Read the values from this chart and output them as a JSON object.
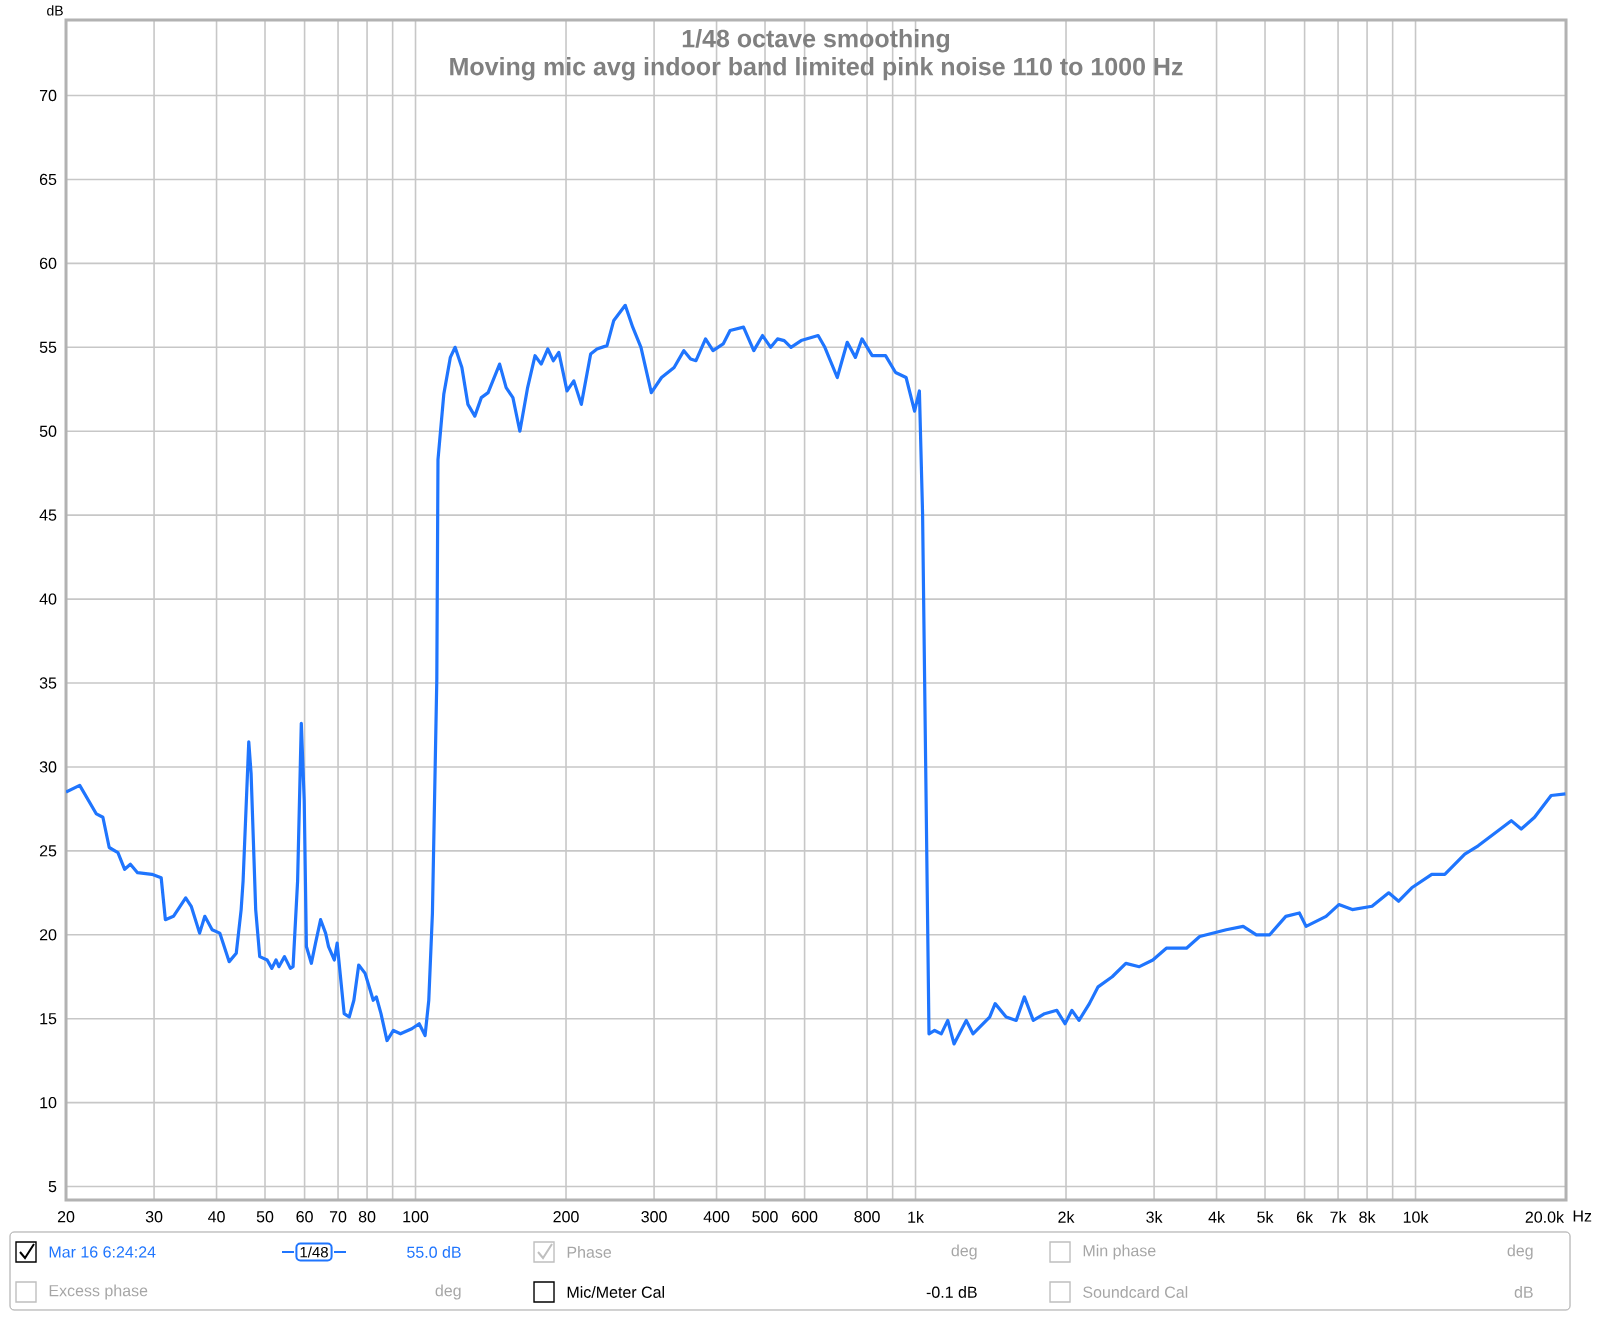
{
  "chart_data": {
    "type": "line",
    "title": "1/48 octave smoothing",
    "subtitle": "Moving mic avg indoor band limited pink noise 110 to 1000 Hz",
    "xlabel": "Hz",
    "ylabel": "dB",
    "log": "x",
    "grid": true,
    "color": "#1f75fe",
    "xlim": [
      20,
      20000
    ],
    "ylim": [
      4.2,
      74.5
    ],
    "xticks": [
      20,
      30,
      40,
      50,
      60,
      70,
      80,
      {
        "value": 90,
        "label": null
      },
      100,
      200,
      300,
      400,
      500,
      600,
      800,
      {
        "value": 900,
        "label": null
      },
      {
        "value": 1000,
        "label": "1k"
      },
      {
        "value": 2000,
        "label": "2k"
      },
      {
        "value": 3000,
        "label": "3k"
      },
      {
        "value": 4000,
        "label": "4k"
      },
      {
        "value": 5000,
        "label": "5k"
      },
      {
        "value": 6000,
        "label": "6k"
      },
      {
        "value": 7000,
        "label": "7k"
      },
      {
        "value": 8000,
        "label": "8k"
      },
      {
        "value": 9000,
        "label": null
      },
      {
        "value": 10000,
        "label": "10k"
      },
      {
        "value": 20000,
        "label": "20.0k"
      }
    ],
    "yticks": [
      5,
      10,
      15,
      20,
      25,
      30,
      35,
      40,
      45,
      50,
      55,
      60,
      65,
      70
    ],
    "x": [
      20,
      21.3,
      23.0,
      23.7,
      24.4,
      25.4,
      26.2,
      26.9,
      27.8,
      29.7,
      31.0,
      31.6,
      32.8,
      34.7,
      35.6,
      37.0,
      37.9,
      39.2,
      40.6,
      42.4,
      43.8,
      44.8,
      45.2,
      46.4,
      46.9,
      47.9,
      48.8,
      50.5,
      51.6,
      52.6,
      53.3,
      54.7,
      56.2,
      56.9,
      58.1,
      59.1,
      59.9,
      60.5,
      61.9,
      63.1,
      64.6,
      66.1,
      67.0,
      68.8,
      69.7,
      72.0,
      73.7,
      75.3,
      77.0,
      79.3,
      82.3,
      83.5,
      85.3,
      87.7,
      90.3,
      93.3,
      98.3,
      101.7,
      104.5,
      106.3,
      108.1,
      110.3,
      110.9,
      113.9,
      117.4,
      120.0,
      123.8,
      127.3,
      131.4,
      135.4,
      139.7,
      147.3,
      151.8,
      156.6,
      161.7,
      167.6,
      173.4,
      178.4,
      183.9,
      188.7,
      193.5,
      200.9,
      207.3,
      214.6,
      224.0,
      230.6,
      241.5,
      249.2,
      262.7,
      271.9,
      282.4,
      296.2,
      310.5,
      329.0,
      344.1,
      355.0,
      363.9,
      380.2,
      393.6,
      412.4,
      425.7,
      452.9,
      474.8,
      494.4,
      513.2,
      529.6,
      546.2,
      563.6,
      590.5,
      638.6,
      658.7,
      697.4,
      730.3,
      758.2,
      781.7,
      819.0,
      871.0,
      912.2,
      957.5,
      995.6,
      1018,
      1033,
      1064,
      1092,
      1126,
      1160,
      1194,
      1263,
      1303,
      1407,
      1443,
      1518,
      1590,
      1651,
      1720,
      1812,
      1917,
      1991,
      2055,
      2123,
      2227,
      2318,
      2474,
      2634,
      2803,
      2983,
      3174,
      3483,
      3701,
      4183,
      4521,
      4805,
      5110,
      5503,
      5858,
      6041,
      6624,
      7025,
      7473,
      8184,
      8838,
      9252,
      9828,
      10776,
      11443,
      12545,
      13344,
      14624,
      15541,
      16270,
      17301,
      18676,
      19945
    ],
    "values": [
      28.5,
      28.9,
      27.2,
      27.0,
      25.2,
      24.9,
      23.9,
      24.2,
      23.7,
      23.6,
      23.4,
      20.9,
      21.1,
      22.2,
      21.7,
      20.1,
      21.1,
      20.3,
      20.1,
      18.4,
      18.9,
      21.5,
      23.2,
      31.5,
      29.6,
      21.5,
      18.7,
      18.5,
      18.0,
      18.5,
      18.1,
      18.7,
      18.0,
      18.1,
      23.2,
      32.6,
      28.0,
      19.3,
      18.3,
      19.5,
      20.9,
      20.1,
      19.3,
      18.5,
      19.5,
      15.3,
      15.1,
      16.1,
      18.2,
      17.7,
      16.1,
      16.3,
      15.3,
      13.7,
      14.3,
      14.1,
      14.4,
      14.7,
      14.0,
      16.1,
      21.3,
      35.2,
      48.3,
      52.2,
      54.4,
      55.0,
      53.8,
      51.6,
      50.9,
      52.0,
      52.3,
      54.0,
      52.6,
      52.0,
      50.0,
      52.6,
      54.5,
      54.0,
      54.9,
      54.2,
      54.7,
      52.4,
      53.0,
      51.6,
      54.6,
      54.9,
      55.1,
      56.6,
      57.5,
      56.2,
      55.0,
      52.3,
      53.2,
      53.8,
      54.8,
      54.3,
      54.2,
      55.5,
      54.8,
      55.2,
      56.0,
      56.2,
      54.8,
      55.7,
      55.0,
      55.5,
      55.4,
      55.0,
      55.4,
      55.7,
      55.0,
      53.2,
      55.3,
      54.4,
      55.5,
      54.5,
      54.5,
      53.5,
      53.2,
      51.2,
      52.4,
      45.1,
      14.1,
      14.3,
      14.1,
      14.9,
      13.5,
      14.9,
      14.1,
      15.1,
      15.9,
      15.1,
      14.9,
      16.3,
      14.9,
      15.3,
      15.5,
      14.7,
      15.5,
      14.9,
      15.9,
      16.9,
      17.5,
      18.3,
      18.1,
      18.5,
      19.2,
      19.2,
      19.9,
      20.3,
      20.5,
      20.0,
      20.0,
      21.1,
      21.3,
      20.5,
      21.1,
      21.8,
      21.5,
      21.7,
      22.5,
      22.0,
      22.8,
      23.6,
      23.6,
      24.8,
      25.3,
      26.2,
      26.8,
      26.3,
      27.0,
      28.3,
      28.4
    ],
    "annotations": [
      "Mar 16 6:24:24",
      "1/48",
      "55.0 dB",
      "Phase",
      "deg",
      "Min phase",
      "deg",
      "Excess phase",
      "deg",
      "Mic/Meter Cal",
      "-0.1 dB",
      "Soundcard Cal",
      "dB"
    ]
  }
}
